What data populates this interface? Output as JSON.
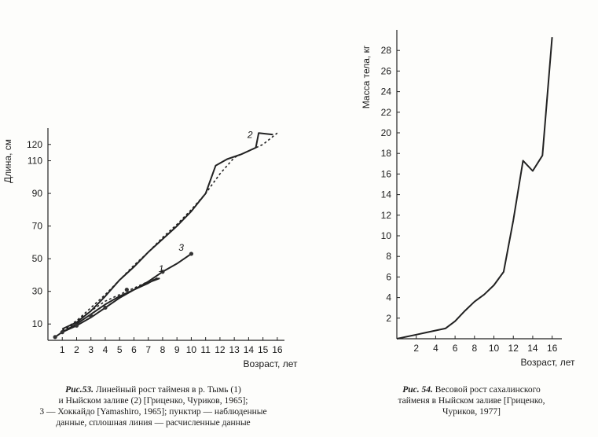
{
  "chart_data": [
    {
      "type": "line",
      "ylabel": "Длина, см",
      "xlabel": "Возраст, лет",
      "x_ticks": [
        1,
        2,
        3,
        4,
        5,
        6,
        7,
        8,
        9,
        10,
        11,
        12,
        13,
        14,
        15,
        16
      ],
      "y_ticks": [
        10,
        30,
        50,
        70,
        90,
        110,
        120
      ],
      "xlim": [
        0,
        16.5
      ],
      "ylim": [
        0,
        130
      ],
      "series": [
        {
          "name": "1",
          "style": "dotted",
          "x": [
            1,
            1.5,
            2,
            3,
            4,
            5,
            6,
            7,
            7.7
          ],
          "y": [
            6,
            8,
            12,
            18,
            24,
            28,
            32,
            36,
            38
          ]
        },
        {
          "name": "1",
          "style": "solid",
          "x": [
            1,
            2,
            3,
            4,
            5,
            6,
            7,
            7.6,
            7.2,
            7.8
          ],
          "y": [
            5,
            10,
            16,
            22,
            27,
            31,
            35,
            38,
            36,
            38
          ]
        },
        {
          "name": "2",
          "style": "dotted",
          "x": [
            1,
            2,
            3,
            4,
            5,
            6,
            7,
            8,
            9,
            10,
            11,
            12,
            13,
            14,
            15,
            16
          ],
          "y": [
            6,
            12,
            20,
            28,
            37,
            46,
            54,
            63,
            71,
            80,
            90,
            102,
            112,
            116,
            120,
            127
          ]
        },
        {
          "name": "2",
          "style": "solid",
          "x": [
            1,
            2,
            3,
            4,
            5,
            6,
            7,
            8,
            9,
            10,
            11,
            11.7,
            12.5,
            13.5,
            14.5,
            14.7,
            15.7
          ],
          "y": [
            7,
            11,
            18,
            27,
            37,
            45,
            54,
            62,
            70,
            79,
            90,
            107,
            111,
            114,
            118,
            127,
            126
          ]
        },
        {
          "name": "3",
          "style": "solid-points",
          "x": [
            0.5,
            1,
            2,
            3,
            4,
            5,
            6,
            7,
            8,
            9,
            10
          ],
          "y": [
            2,
            5,
            9,
            14,
            20,
            26,
            31,
            36,
            42,
            47,
            53
          ]
        },
        {
          "name": "3-points",
          "style": "points",
          "x": [
            0.5,
            1,
            2,
            3,
            4,
            5.5,
            8,
            10
          ],
          "y": [
            2,
            5,
            9,
            15,
            20,
            31,
            42,
            53
          ]
        }
      ],
      "series_labels": [
        "1",
        "2",
        "3"
      ]
    },
    {
      "type": "line",
      "ylabel": "Масса тела, кг",
      "xlabel": "Возраст, лет",
      "x_ticks": [
        2,
        4,
        6,
        8,
        10,
        12,
        14,
        16
      ],
      "y_ticks": [
        2,
        4,
        6,
        8,
        10,
        12,
        14,
        16,
        18,
        20,
        22,
        24,
        26,
        28
      ],
      "xlim": [
        0,
        17
      ],
      "ylim": [
        0,
        30
      ],
      "series": [
        {
          "name": "",
          "style": "solid",
          "x": [
            0,
            1,
            2,
            3,
            4,
            5,
            6,
            7,
            8,
            9,
            10,
            11,
            12,
            13,
            14,
            15,
            16
          ],
          "y": [
            0,
            0.2,
            0.4,
            0.6,
            0.8,
            1.0,
            1.7,
            2.7,
            3.6,
            4.3,
            5.2,
            6.5,
            11.5,
            17.3,
            16.3,
            17.8,
            29.3
          ]
        }
      ]
    }
  ],
  "captions": {
    "fig53": {
      "label": "Рис.53.",
      "lines": [
        "Линейный рост тайменя в р. Тымь (1)",
        "и Ныйском заливе (2) [Гриценко, Чуриков, 1965];",
        "3 — Хоккайдо [Yamashiro, 1965]; пунктир — наблюденные",
        "данные, сплошная линия — расчисленные данные"
      ]
    },
    "fig54": {
      "label": "Рис. 54.",
      "lines": [
        "Весовой рост сахалинского",
        "тайменя в Ныйском заливе [Гриценко,",
        "Чуриков, 1977]"
      ]
    }
  }
}
